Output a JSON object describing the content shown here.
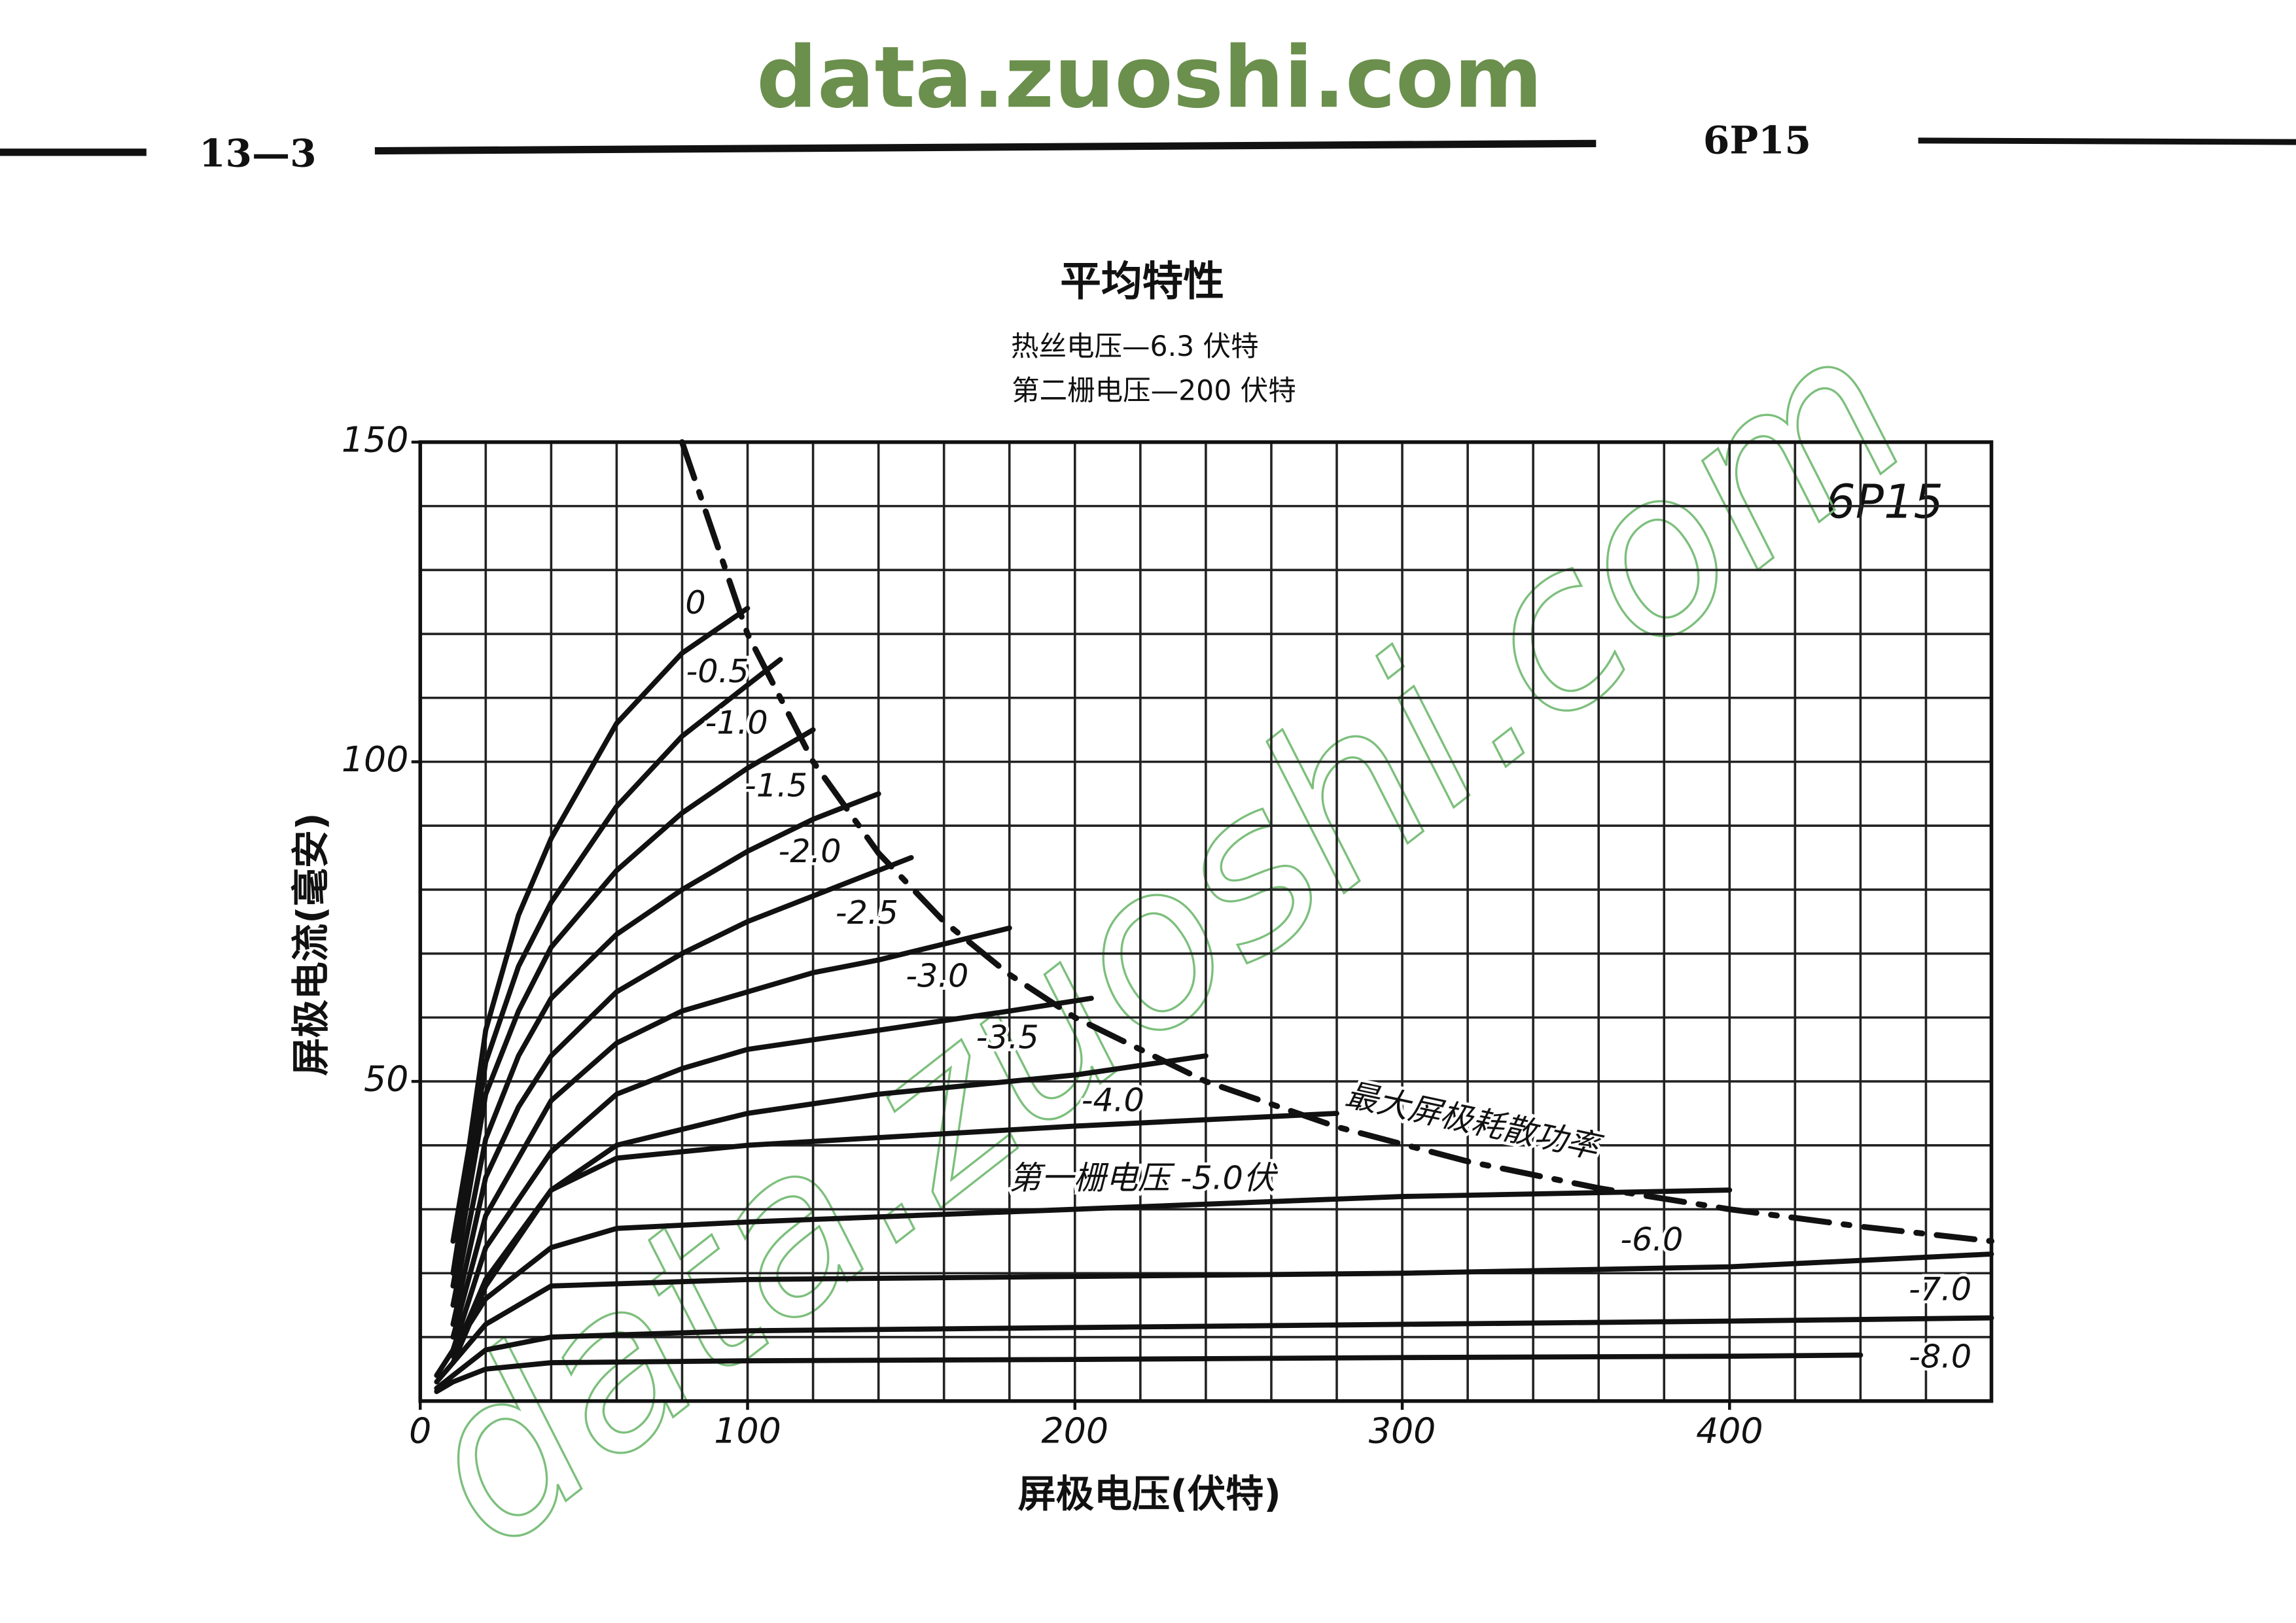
{
  "header": {
    "watermark": "data.zuoshi.com",
    "page_number": "13—3",
    "model": "6P15"
  },
  "chart_data": {
    "type": "line",
    "title": "平均特性",
    "subtitle": [
      "热丝电压—6.3 伏特",
      "第二栅电压—200 伏特"
    ],
    "xlabel": "屏极电压(伏特)",
    "ylabel": "屏极电流(毫安)",
    "annotation": "6P15",
    "diagonal_watermark": "data.zuoshi.com",
    "xlim": [
      0,
      480
    ],
    "ylim": [
      0,
      150
    ],
    "xticks": [
      0,
      100,
      200,
      300,
      400
    ],
    "yticks": [
      50,
      100,
      150
    ],
    "xgrid": [
      0,
      20,
      40,
      60,
      80,
      100,
      120,
      140,
      160,
      180,
      200,
      220,
      240,
      260,
      280,
      300,
      320,
      340,
      360,
      380,
      400,
      420,
      440,
      460,
      480
    ],
    "ygrid": [
      0,
      10,
      20,
      30,
      40,
      50,
      60,
      70,
      80,
      90,
      100,
      110,
      120,
      130,
      140,
      150
    ],
    "series": [
      {
        "name": "0",
        "color": "#111",
        "x": [
          10,
          15,
          20,
          30,
          40,
          60,
          80,
          100
        ],
        "values": [
          25,
          40,
          58,
          76,
          88,
          106,
          117,
          124
        ]
      },
      {
        "name": "-0.5",
        "color": "#111",
        "x": [
          10,
          20,
          30,
          40,
          60,
          80,
          100,
          110
        ],
        "values": [
          20,
          53,
          68,
          78,
          93,
          104,
          112,
          116
        ]
      },
      {
        "name": "-1.0",
        "color": "#111",
        "x": [
          10,
          20,
          30,
          40,
          60,
          80,
          100,
          120
        ],
        "values": [
          18,
          48,
          61,
          71,
          83,
          92,
          99,
          105
        ]
      },
      {
        "name": "-1.5",
        "color": "#111",
        "x": [
          10,
          20,
          30,
          40,
          60,
          80,
          100,
          120,
          140
        ],
        "values": [
          15,
          41,
          54,
          63,
          73,
          80,
          86,
          91,
          95
        ]
      },
      {
        "name": "-2.0",
        "color": "#111",
        "x": [
          10,
          20,
          30,
          40,
          60,
          80,
          100,
          120,
          150
        ],
        "values": [
          12,
          35,
          46,
          54,
          64,
          70,
          75,
          79,
          85
        ]
      },
      {
        "name": "-2.5",
        "color": "#111",
        "x": [
          10,
          20,
          40,
          60,
          80,
          100,
          120,
          140,
          180
        ],
        "values": [
          10,
          29,
          47,
          56,
          61,
          64,
          67,
          69,
          74
        ]
      },
      {
        "name": "-3.0",
        "color": "#111",
        "x": [
          10,
          20,
          40,
          60,
          80,
          100,
          140,
          180,
          205
        ],
        "values": [
          8,
          24,
          39,
          48,
          52,
          55,
          58,
          61,
          63
        ]
      },
      {
        "name": "-3.5",
        "color": "#111",
        "x": [
          10,
          20,
          40,
          60,
          100,
          140,
          200,
          240
        ],
        "values": [
          7,
          19,
          33,
          40,
          45,
          48,
          51,
          54
        ]
      },
      {
        "name": "-4.0",
        "color": "#111",
        "x": [
          10,
          20,
          40,
          60,
          100,
          200,
          280
        ],
        "values": [
          6,
          18,
          33,
          38,
          40,
          43,
          45
        ]
      },
      {
        "name": "第一栅电压 -5.0伏",
        "color": "#111",
        "x": [
          5,
          10,
          20,
          40,
          60,
          100,
          200,
          300,
          400
        ],
        "values": [
          4,
          8,
          16,
          24,
          27,
          28,
          30,
          32,
          33
        ]
      },
      {
        "name": "-6.0",
        "color": "#111",
        "x": [
          5,
          10,
          20,
          40,
          100,
          200,
          300,
          400,
          480
        ],
        "values": [
          3,
          6,
          12,
          18,
          19,
          19.5,
          20,
          21,
          23
        ]
      },
      {
        "name": "-7.0",
        "color": "#111",
        "x": [
          5,
          10,
          20,
          40,
          100,
          200,
          300,
          400,
          480
        ],
        "values": [
          2,
          4,
          8,
          10,
          11,
          11.5,
          12,
          12.5,
          13
        ]
      },
      {
        "name": "-8.0",
        "color": "#111",
        "x": [
          5,
          10,
          20,
          40,
          100,
          200,
          300,
          400,
          440
        ],
        "values": [
          1.5,
          3,
          5,
          6,
          6.3,
          6.5,
          6.8,
          7,
          7.2
        ]
      },
      {
        "name": "最大屏极耗散功率",
        "color": "#111",
        "dashed": true,
        "x": [
          80,
          100,
          120,
          140,
          160,
          180,
          200,
          240,
          280,
          320,
          360,
          400,
          440,
          480
        ],
        "values": [
          150,
          120,
          100,
          85.7,
          75,
          66.7,
          60,
          50,
          42.9,
          37.5,
          33.3,
          30,
          27.3,
          25
        ]
      }
    ]
  }
}
